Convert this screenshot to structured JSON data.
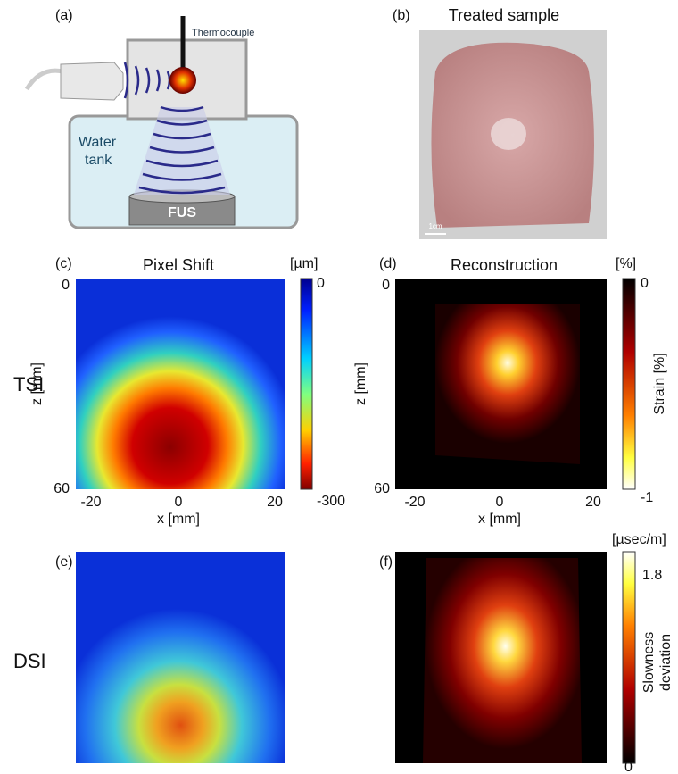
{
  "panels": {
    "a": {
      "label": "(a)",
      "thermocouple": "Thermocouple",
      "water_tank": [
        "Water",
        "tank"
      ],
      "fus": "FUS"
    },
    "b": {
      "label": "(b)",
      "title": "Treated sample",
      "scale_bar": "1cm"
    },
    "c": {
      "label": "(c)",
      "title": "Pixel Shift",
      "unit": "[µm]",
      "colorbar_ticks": [
        "0",
        "-300"
      ],
      "y_ticks": [
        "0",
        "60"
      ],
      "y_label": "z [mm]",
      "x_ticks": [
        "-20",
        "0",
        "20"
      ],
      "x_label": "x [mm]"
    },
    "d": {
      "label": "(d)",
      "title": "Reconstruction",
      "unit": "[%]",
      "colorbar_ticks": [
        "0",
        "-1"
      ],
      "colorbar_label": "Strain [%]",
      "y_ticks": [
        "0",
        "60"
      ],
      "y_label": "z [mm]",
      "x_ticks": [
        "-20",
        "0",
        "20"
      ],
      "x_label": "x [mm]"
    },
    "e": {
      "label": "(e)"
    },
    "f": {
      "label": "(f)",
      "unit": "[µsec/m]",
      "colorbar_ticks": [
        "1.8",
        "0"
      ],
      "colorbar_label": [
        "Slowness",
        "deviation"
      ]
    }
  },
  "row_labels": [
    "TSI",
    "DSI"
  ]
}
